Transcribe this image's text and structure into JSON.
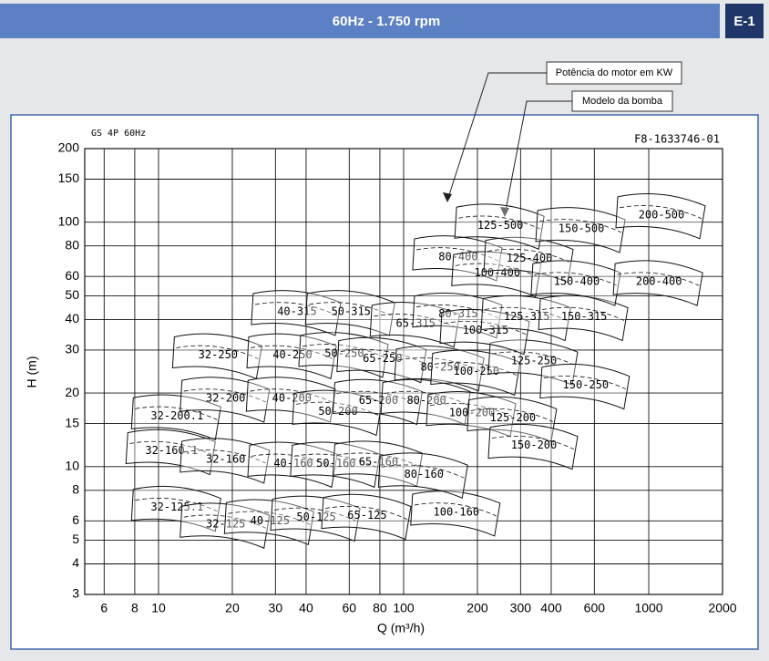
{
  "header": {
    "title": "60Hz - 1.750 rpm",
    "page": "E-1"
  },
  "callouts": [
    "Potência do motor em KW",
    "Modelo da bomba"
  ],
  "chart_data": {
    "type": "annotation-map",
    "top_left_label": "GS 4P 60Hz",
    "top_right_label": "F8-1633746-01",
    "x_label": "Q (m³/h)",
    "y_label": "H (m)",
    "log_x": true,
    "log_y": true,
    "grid": true,
    "xlim": [
      5,
      2000
    ],
    "ylim": [
      3,
      200
    ],
    "xticks": [
      6,
      8,
      10,
      20,
      30,
      40,
      60,
      80,
      100,
      200,
      300,
      400,
      600,
      1000,
      2000
    ],
    "yticks": [
      3,
      4,
      5,
      6,
      8,
      10,
      15,
      20,
      30,
      40,
      50,
      60,
      80,
      100,
      150,
      200
    ],
    "annotations": [
      {
        "text": "32-125.1",
        "x": 11.9,
        "y": 6.8
      },
      {
        "text": "32-125",
        "x": 18.8,
        "y": 5.8
      },
      {
        "text": "40-125",
        "x": 28.5,
        "y": 6
      },
      {
        "text": "50-125",
        "x": 44,
        "y": 6.2
      },
      {
        "text": "65-125",
        "x": 71,
        "y": 6.3
      },
      {
        "text": "100-160",
        "x": 164,
        "y": 6.5
      },
      {
        "text": "32-160.1",
        "x": 11.3,
        "y": 11.6
      },
      {
        "text": "32-160",
        "x": 18.8,
        "y": 10.7
      },
      {
        "text": "40-160",
        "x": 35.5,
        "y": 10.3
      },
      {
        "text": "50-160",
        "x": 53,
        "y": 10.3
      },
      {
        "text": "65-160",
        "x": 79,
        "y": 10.4
      },
      {
        "text": "80-160",
        "x": 121,
        "y": 9.3
      },
      {
        "text": "32-200.1",
        "x": 11.9,
        "y": 16.1
      },
      {
        "text": "32-200",
        "x": 18.8,
        "y": 19
      },
      {
        "text": "40-200",
        "x": 35,
        "y": 19
      },
      {
        "text": "50-200",
        "x": 54,
        "y": 16.8
      },
      {
        "text": "65-200",
        "x": 79,
        "y": 18.6
      },
      {
        "text": "80-200",
        "x": 124,
        "y": 18.6
      },
      {
        "text": "100-200",
        "x": 190,
        "y": 16.6
      },
      {
        "text": "125-200",
        "x": 279,
        "y": 15.8
      },
      {
        "text": "150-200",
        "x": 340,
        "y": 12.2
      },
      {
        "text": "32-250",
        "x": 17.5,
        "y": 28.6
      },
      {
        "text": "40-250",
        "x": 35.2,
        "y": 28.6
      },
      {
        "text": "50-250",
        "x": 57.3,
        "y": 29
      },
      {
        "text": "65-250",
        "x": 82,
        "y": 27.6
      },
      {
        "text": "80-250",
        "x": 141,
        "y": 25.5
      },
      {
        "text": "100-250",
        "x": 198,
        "y": 24.5
      },
      {
        "text": "125-250",
        "x": 340,
        "y": 27
      },
      {
        "text": "150-250",
        "x": 553,
        "y": 21.5
      },
      {
        "text": "40-315",
        "x": 36.7,
        "y": 43
      },
      {
        "text": "50-315",
        "x": 61,
        "y": 43
      },
      {
        "text": "65-315",
        "x": 112,
        "y": 38.5
      },
      {
        "text": "80-315",
        "x": 167,
        "y": 42
      },
      {
        "text": "100-315",
        "x": 216,
        "y": 36
      },
      {
        "text": "125-315",
        "x": 318,
        "y": 41
      },
      {
        "text": "150-315",
        "x": 545,
        "y": 41
      },
      {
        "text": "80-400",
        "x": 167,
        "y": 72
      },
      {
        "text": "100-400",
        "x": 241,
        "y": 62
      },
      {
        "text": "125-400",
        "x": 326,
        "y": 71
      },
      {
        "text": "150-400",
        "x": 508,
        "y": 57
      },
      {
        "text": "200-400",
        "x": 1100,
        "y": 57
      },
      {
        "text": "125-500",
        "x": 248,
        "y": 97
      },
      {
        "text": "150-500",
        "x": 531,
        "y": 94
      },
      {
        "text": "200-500",
        "x": 1127,
        "y": 107
      }
    ]
  }
}
